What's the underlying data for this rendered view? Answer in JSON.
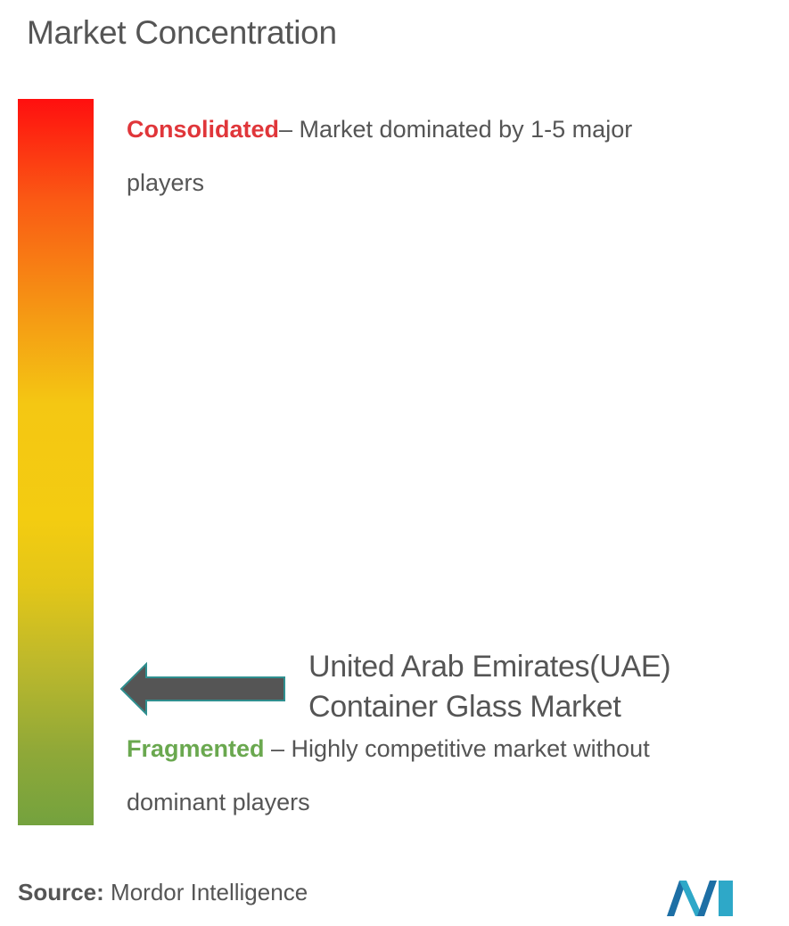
{
  "title": "Market Concentration",
  "consolidated": {
    "label": "Consolidated",
    "desc_line1": "– Market dominated by 1-5 major",
    "desc_line2": "players"
  },
  "fragmented": {
    "label": "Fragmented",
    "desc_line1": " – Highly competitive market without",
    "desc_line2": "dominant players"
  },
  "market": {
    "line1": "United Arab Emirates(UAE)",
    "line2": "Container Glass Market"
  },
  "source": {
    "label": "Source:",
    "value": " Mordor Intelligence"
  },
  "colors": {
    "consolidated": "#e0363a",
    "fragmented": "#6aa84f",
    "arrow": "#555555",
    "logo": "#2ea8c8"
  },
  "chart_data": {
    "type": "scale",
    "scale_top": "Consolidated",
    "scale_bottom": "Fragmented",
    "marker": "United Arab Emirates(UAE) Container Glass Market",
    "marker_position": 0.2
  }
}
